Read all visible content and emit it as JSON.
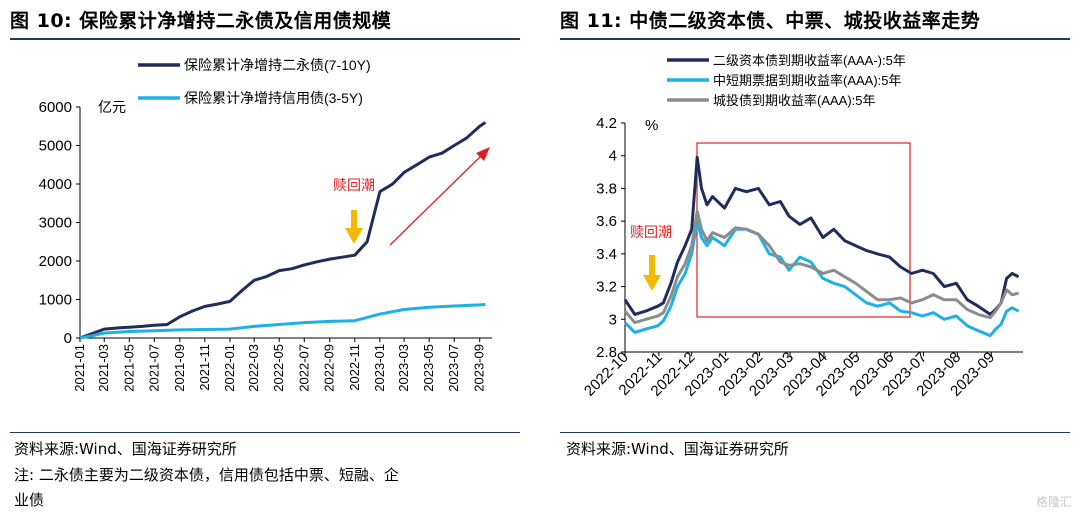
{
  "figures": [
    {
      "title": "图 10:  保险累计净增持二永债及信用债规模",
      "source": "资料来源:Wind、国海证券研究所",
      "note_line1": "注:  二永债主要为二级资本债，信用债包括中票、短融、企",
      "note_line2": "业债"
    },
    {
      "title": "图 11:  中债二级资本债、中票、城投收益率走势",
      "source": "资料来源:Wind、国海证券研究所"
    }
  ],
  "watermark": "格隆汇",
  "chart_data": [
    {
      "type": "line",
      "title": "",
      "ylabel": "亿元",
      "ylim": [
        0,
        6000
      ],
      "yticks": [
        0,
        1000,
        2000,
        3000,
        4000,
        5000,
        6000
      ],
      "xlim": [
        "2021-01",
        "2023-10"
      ],
      "xticks": [
        "2021-01",
        "2021-03",
        "2021-05",
        "2021-07",
        "2021-09",
        "2021-11",
        "2022-01",
        "2022-03",
        "2022-05",
        "2022-07",
        "2022-09",
        "2022-11",
        "2023-01",
        "2023-03",
        "2023-05",
        "2023-07",
        "2023-09"
      ],
      "legend_position": "top-left",
      "series": [
        {
          "name": "保险累计净增持二永债(7-10Y)",
          "color": "#1f2d5c",
          "x": [
            "2021-01",
            "2021-02",
            "2021-03",
            "2021-04",
            "2021-05",
            "2021-06",
            "2021-07",
            "2021-08",
            "2021-09",
            "2021-10",
            "2021-11",
            "2021-12",
            "2022-01",
            "2022-02",
            "2022-03",
            "2022-04",
            "2022-05",
            "2022-06",
            "2022-07",
            "2022-08",
            "2022-09",
            "2022-10",
            "2022-11",
            "2022-12",
            "2023-01",
            "2023-02",
            "2023-03",
            "2023-04",
            "2023-05",
            "2023-06",
            "2023-07",
            "2023-08",
            "2023-09",
            "2023-09-15"
          ],
          "values": [
            0,
            120,
            230,
            260,
            280,
            300,
            330,
            350,
            550,
            700,
            820,
            880,
            950,
            1250,
            1500,
            1600,
            1750,
            1800,
            1900,
            1980,
            2050,
            2100,
            2150,
            2500,
            3800,
            4000,
            4300,
            4500,
            4700,
            4800,
            5000,
            5200,
            5500,
            5600
          ]
        },
        {
          "name": "保险累计净增持信用债(3-5Y)",
          "color": "#1fb0e6",
          "x": [
            "2021-01",
            "2021-02",
            "2021-03",
            "2021-05",
            "2021-07",
            "2021-09",
            "2021-11",
            "2022-01",
            "2022-03",
            "2022-05",
            "2022-07",
            "2022-09",
            "2022-11",
            "2023-01",
            "2023-03",
            "2023-05",
            "2023-07",
            "2023-09",
            "2023-09-15"
          ],
          "values": [
            0,
            60,
            130,
            170,
            190,
            210,
            220,
            230,
            300,
            350,
            400,
            430,
            450,
            620,
            740,
            800,
            830,
            860,
            870
          ]
        }
      ],
      "annotations": [
        {
          "text": "赎回潮",
          "color": "#e02020"
        }
      ]
    },
    {
      "type": "line",
      "title": "",
      "ylabel": "%",
      "ylim": [
        2.8,
        4.2
      ],
      "yticks": [
        2.8,
        3,
        3.2,
        3.4,
        3.6,
        3.8,
        4,
        4.2
      ],
      "xlim": [
        "2022-10-01",
        "2023-09-30"
      ],
      "xticks": [
        "2022-10",
        "2022-11",
        "2022-12",
        "2023-01",
        "2023-02",
        "2023-03",
        "2023-04",
        "2023-05",
        "2023-06",
        "2023-07",
        "2023-08",
        "2023-09"
      ],
      "legend_position": "top",
      "series": [
        {
          "name": "二级资本债到期收益率(AAA-):5年",
          "color": "#1f2d5c",
          "x": [
            "2022-10-01",
            "2022-10-10",
            "2022-10-20",
            "2022-10-31",
            "2022-11-05",
            "2022-11-12",
            "2022-11-18",
            "2022-11-25",
            "2022-12-01",
            "2022-12-06",
            "2022-12-10",
            "2022-12-15",
            "2022-12-20",
            "2022-12-31",
            "2023-01-10",
            "2023-01-20",
            "2023-01-31",
            "2023-02-10",
            "2023-02-20",
            "2023-02-28",
            "2023-03-10",
            "2023-03-20",
            "2023-03-31",
            "2023-04-10",
            "2023-04-20",
            "2023-04-30",
            "2023-05-10",
            "2023-05-20",
            "2023-05-31",
            "2023-06-10",
            "2023-06-20",
            "2023-06-30",
            "2023-07-10",
            "2023-07-20",
            "2023-07-31",
            "2023-08-10",
            "2023-08-20",
            "2023-08-31",
            "2023-09-05",
            "2023-09-10",
            "2023-09-15",
            "2023-09-20",
            "2023-09-26"
          ],
          "values": [
            3.12,
            3.03,
            3.05,
            3.08,
            3.1,
            3.22,
            3.35,
            3.45,
            3.55,
            3.99,
            3.8,
            3.7,
            3.75,
            3.68,
            3.8,
            3.78,
            3.8,
            3.7,
            3.72,
            3.63,
            3.58,
            3.62,
            3.5,
            3.55,
            3.48,
            3.45,
            3.42,
            3.4,
            3.38,
            3.32,
            3.28,
            3.3,
            3.28,
            3.2,
            3.22,
            3.12,
            3.08,
            3.03,
            3.06,
            3.1,
            3.25,
            3.28,
            3.26
          ]
        },
        {
          "name": "中短期票据到期收益率(AAA):5年",
          "color": "#1fb0e6",
          "x": [
            "2022-10-01",
            "2022-10-10",
            "2022-10-20",
            "2022-10-31",
            "2022-11-05",
            "2022-11-12",
            "2022-11-18",
            "2022-11-25",
            "2022-12-01",
            "2022-12-06",
            "2022-12-10",
            "2022-12-15",
            "2022-12-20",
            "2022-12-31",
            "2023-01-10",
            "2023-01-20",
            "2023-01-31",
            "2023-02-10",
            "2023-02-20",
            "2023-02-28",
            "2023-03-10",
            "2023-03-20",
            "2023-03-31",
            "2023-04-10",
            "2023-04-20",
            "2023-04-30",
            "2023-05-10",
            "2023-05-20",
            "2023-05-31",
            "2023-06-10",
            "2023-06-20",
            "2023-06-30",
            "2023-07-10",
            "2023-07-20",
            "2023-07-31",
            "2023-08-10",
            "2023-08-20",
            "2023-08-31",
            "2023-09-05",
            "2023-09-10",
            "2023-09-15",
            "2023-09-20",
            "2023-09-26"
          ],
          "values": [
            2.98,
            2.92,
            2.94,
            2.96,
            2.99,
            3.08,
            3.2,
            3.28,
            3.4,
            3.6,
            3.5,
            3.45,
            3.5,
            3.45,
            3.55,
            3.55,
            3.52,
            3.4,
            3.38,
            3.3,
            3.38,
            3.35,
            3.25,
            3.22,
            3.2,
            3.15,
            3.1,
            3.08,
            3.1,
            3.05,
            3.04,
            3.02,
            3.04,
            3.0,
            3.02,
            2.96,
            2.93,
            2.9,
            2.94,
            2.97,
            3.05,
            3.07,
            3.05
          ]
        },
        {
          "name": "城投债到期收益率(AAA):5年",
          "color": "#8c8c8c",
          "x": [
            "2022-10-01",
            "2022-10-10",
            "2022-10-20",
            "2022-10-31",
            "2022-11-05",
            "2022-11-12",
            "2022-11-18",
            "2022-11-25",
            "2022-12-01",
            "2022-12-06",
            "2022-12-10",
            "2022-12-15",
            "2022-12-20",
            "2022-12-31",
            "2023-01-10",
            "2023-01-20",
            "2023-01-31",
            "2023-02-10",
            "2023-02-20",
            "2023-02-28",
            "2023-03-10",
            "2023-03-20",
            "2023-03-31",
            "2023-04-10",
            "2023-04-20",
            "2023-04-30",
            "2023-05-10",
            "2023-05-20",
            "2023-05-31",
            "2023-06-10",
            "2023-06-20",
            "2023-06-30",
            "2023-07-10",
            "2023-07-20",
            "2023-07-31",
            "2023-08-10",
            "2023-08-20",
            "2023-08-31",
            "2023-09-05",
            "2023-09-10",
            "2023-09-15",
            "2023-09-20",
            "2023-09-26"
          ],
          "values": [
            3.05,
            2.98,
            3.0,
            3.02,
            3.04,
            3.14,
            3.26,
            3.34,
            3.45,
            3.66,
            3.55,
            3.48,
            3.53,
            3.5,
            3.56,
            3.55,
            3.52,
            3.45,
            3.35,
            3.33,
            3.34,
            3.32,
            3.28,
            3.3,
            3.26,
            3.22,
            3.17,
            3.12,
            3.12,
            3.13,
            3.1,
            3.12,
            3.15,
            3.12,
            3.12,
            3.06,
            3.03,
            3.01,
            3.05,
            3.1,
            3.18,
            3.15,
            3.16
          ]
        }
      ],
      "annotations": [
        {
          "text": "赎回潮",
          "color": "#e02020"
        }
      ]
    }
  ]
}
